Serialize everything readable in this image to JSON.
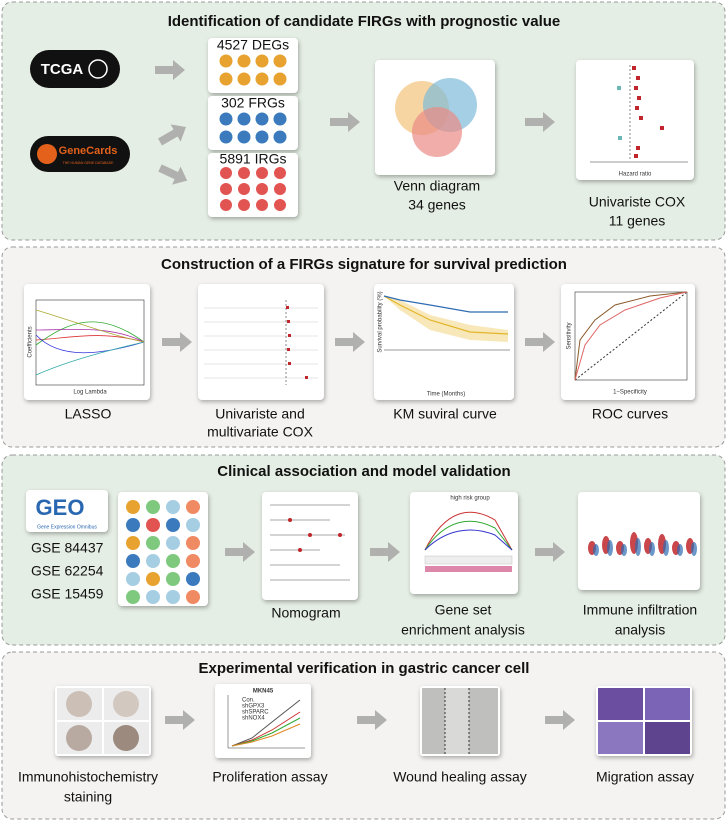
{
  "panel1": {
    "title": "Identification of candidate FIRGs with prognostic value",
    "tcga": "TCGA",
    "genecards": "GeneCards",
    "genecards_sub": "THE HUMAN GENE DATABASE",
    "degs": "4527 DEGs",
    "frgs": "302 FRGs",
    "irgs": "5891 IRGs",
    "venn": [
      "Venn diagram",
      "34 genes"
    ],
    "forest_axis": "Hazard ratio",
    "cox": [
      "Univariste COX",
      "11 genes"
    ]
  },
  "panel2": {
    "title": "Construction of a FIRGs signature for survival prediction",
    "lasso_x": "Log Lambda",
    "lasso_y": "Coefficients",
    "km_x": "Time (Months)",
    "km_y": "Survival probability (%)",
    "roc_x": "1−Specificity",
    "roc_y": "Sensitivity",
    "labels": [
      "LASSO",
      "Univariste and",
      "multivariate COX",
      "KM suviral curve",
      "ROC curves"
    ]
  },
  "panel3": {
    "title": "Clinical association and model validation",
    "geo": "GEO",
    "geo_sub": "Gene Expression Omnibus",
    "gse": [
      "GSE 84437",
      "GSE 62254",
      "GSE 15459"
    ],
    "gsea_group": "high risk group",
    "labels": [
      "Nomogram",
      "Gene set",
      "enrichment analysis",
      "Immune infiltration",
      "analysis"
    ]
  },
  "panel4": {
    "title": "Experimental verification in gastric cancer cell",
    "prolif_title": "MKN45",
    "prolif_legend": [
      "Con.",
      "shGPX3",
      "shSPARC",
      "shNOX4"
    ],
    "labels": [
      "Immunohistochemistry",
      "staining",
      "Proliferation assay",
      "Wound healing assay",
      "Migration assay"
    ]
  }
}
